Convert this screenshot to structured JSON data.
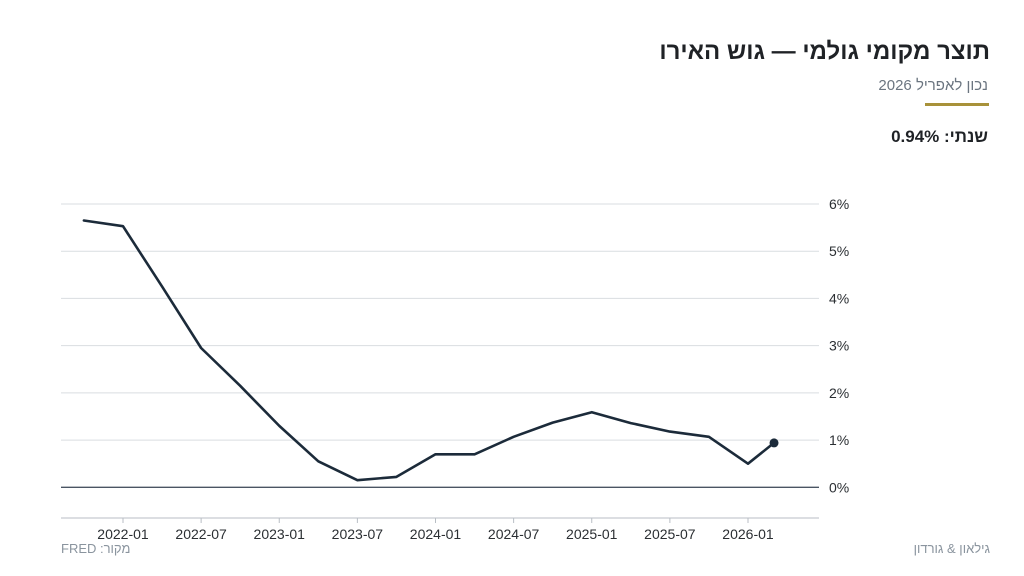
{
  "header": {
    "title": "תוצר מקומי גולמי — גוש האירו",
    "subtitle": "נכון לאפריל 2026",
    "stat": "שנתי: 0.94%"
  },
  "footer": {
    "source": "מקור: FRED",
    "brand": "גילאון & גורדון"
  },
  "colors": {
    "accent": "#a8923a",
    "line": "#1c2b3a",
    "grid": "#d9dde1",
    "zero_line": "#4a5563",
    "axis": "#b8bec4"
  },
  "chart_data": {
    "type": "line",
    "title": "תוצר מקומי גולמי — גוש האירו",
    "x_tick_labels": [
      "2022-01",
      "2022-07",
      "2023-01",
      "2023-07",
      "2024-01",
      "2024-07",
      "2025-01",
      "2025-07",
      "2026-01"
    ],
    "y_tick_labels": [
      "0%",
      "1%",
      "2%",
      "3%",
      "4%",
      "5%",
      "6%"
    ],
    "ylim": [
      -0.65,
      6.0
    ],
    "grid": "horizontal",
    "series": [
      {
        "x": [
          "2021-10",
          "2022-01",
          "2022-04",
          "2022-07",
          "2022-10",
          "2023-01",
          "2023-04",
          "2023-07",
          "2023-10",
          "2024-01",
          "2024-04",
          "2024-07",
          "2024-10",
          "2025-01",
          "2025-04",
          "2025-07",
          "2025-10",
          "2026-01",
          "2026-03"
        ],
        "values": [
          5.65,
          5.53,
          4.25,
          2.95,
          2.15,
          1.3,
          0.55,
          0.15,
          0.22,
          0.7,
          0.7,
          1.07,
          1.37,
          1.59,
          1.36,
          1.18,
          1.07,
          0.5,
          0.94
        ]
      }
    ]
  }
}
